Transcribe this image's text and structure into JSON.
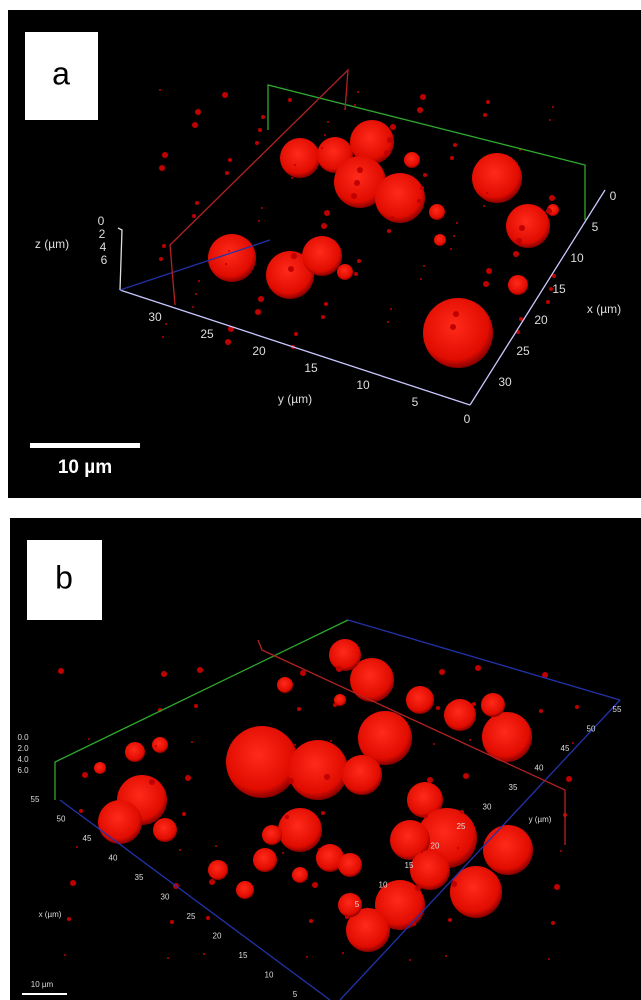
{
  "panel_a": {
    "label": "a",
    "scale_bar": "10 µm",
    "z_axis": {
      "title": "z (µm)",
      "ticks": [
        "0",
        "2",
        "4",
        "6"
      ]
    },
    "y_axis": {
      "title": "y (µm)",
      "ticks": [
        "30",
        "25",
        "20",
        "15",
        "10",
        "5",
        "0"
      ]
    },
    "x_axis": {
      "title": "x (µm)",
      "ticks": [
        "0",
        "5",
        "10",
        "15",
        "20",
        "25",
        "30"
      ]
    }
  },
  "panel_b": {
    "label": "b",
    "scale_bar": "10 µm",
    "z_axis": {
      "ticks": [
        "0.0",
        "2.0",
        "4.0",
        "6.0"
      ]
    },
    "x_axis": {
      "title": "x (µm)",
      "ticks": [
        "55",
        "50",
        "45",
        "40",
        "35",
        "30",
        "25",
        "20",
        "15",
        "10",
        "5"
      ]
    },
    "y_axis": {
      "title": "y (µm)",
      "ticks": [
        "55",
        "50",
        "45",
        "40",
        "35",
        "30",
        "25",
        "20",
        "15",
        "10",
        "5"
      ]
    }
  }
}
